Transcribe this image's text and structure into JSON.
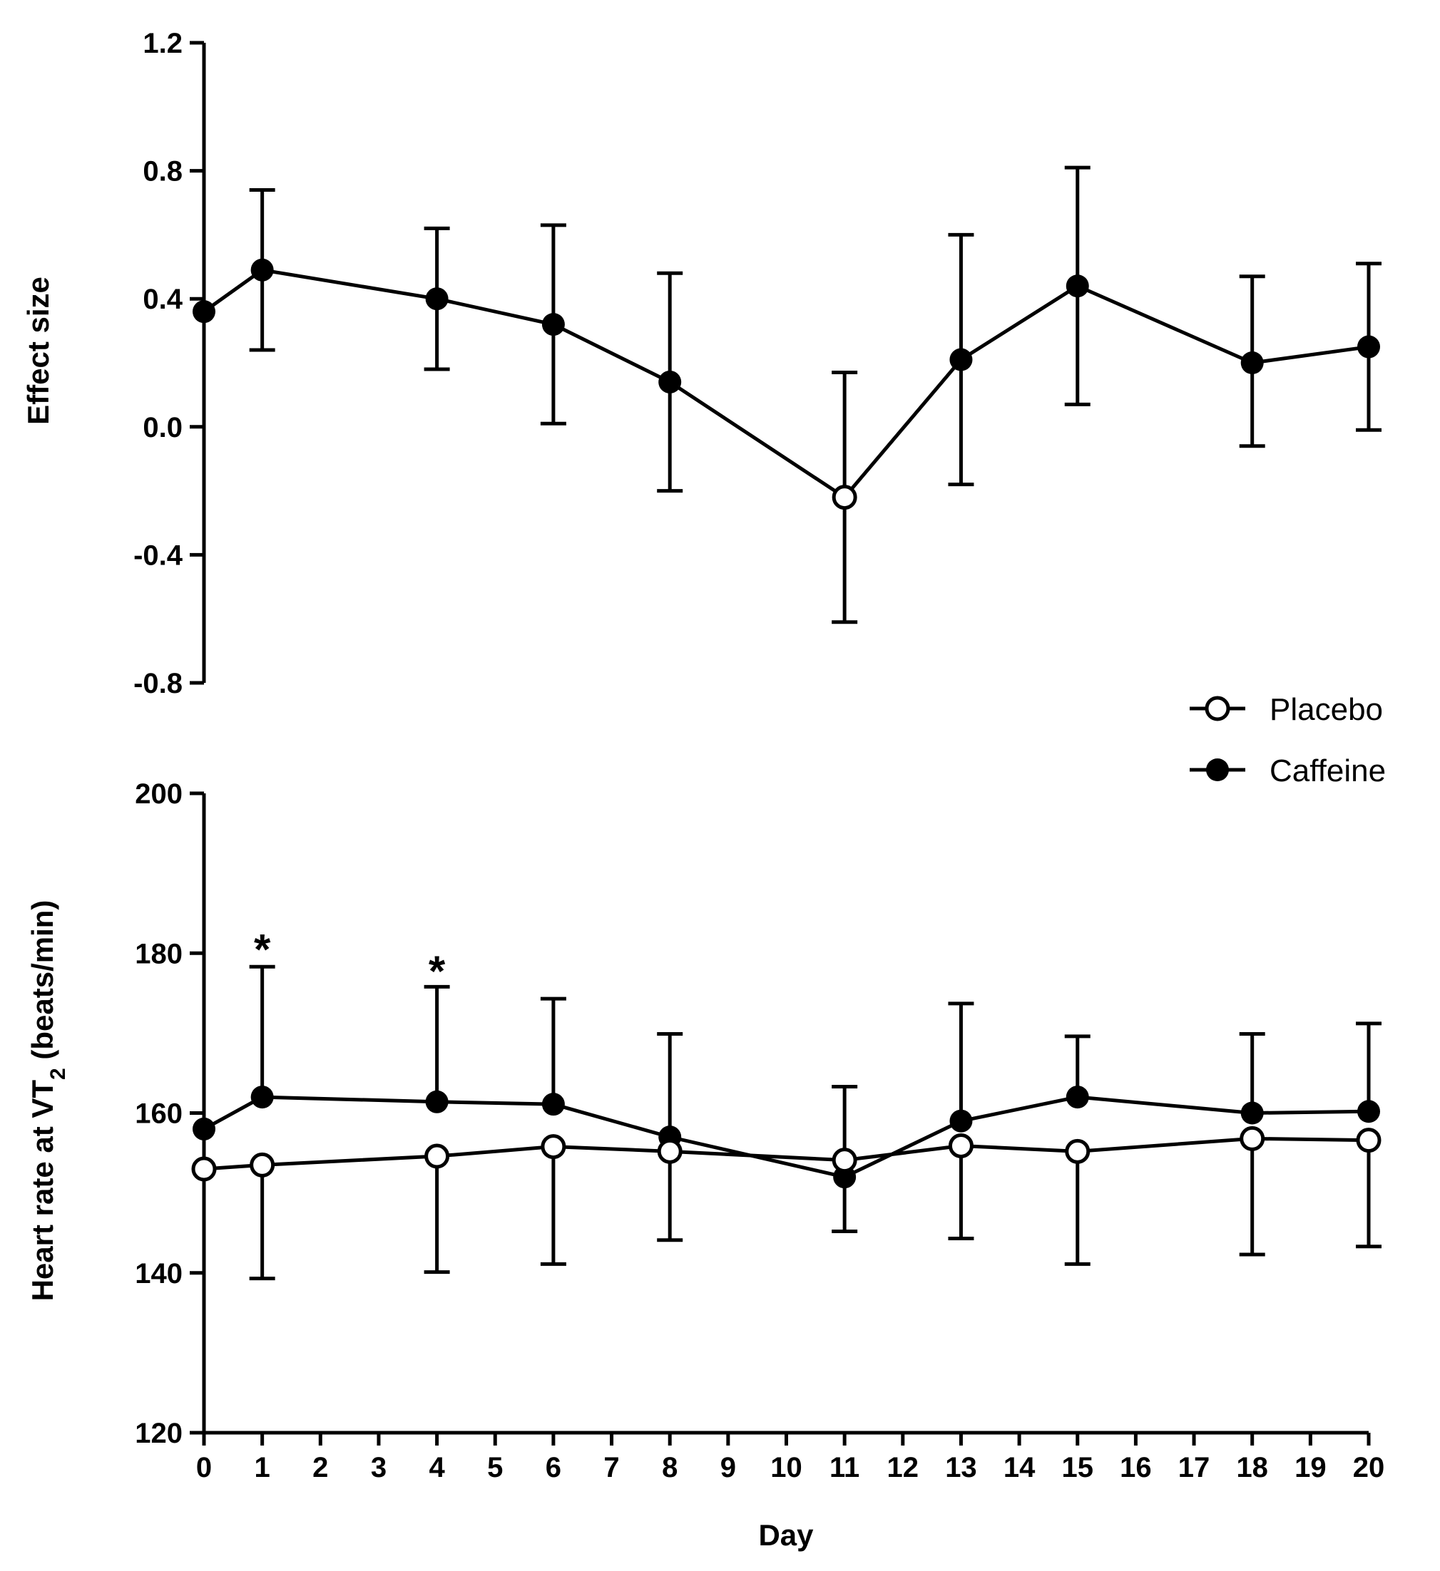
{
  "chart_data": [
    {
      "type": "line",
      "panel": "top",
      "title": "",
      "xlabel": "",
      "ylabel": "Effect size",
      "ylim": [
        -0.8,
        1.2
      ],
      "yticks": [
        "1.2",
        "0.8",
        "0.4",
        "0.0",
        "-0.4",
        "-0.8"
      ],
      "ytick_values": [
        1.2,
        0.8,
        0.4,
        0.0,
        -0.4,
        -0.8
      ],
      "xlim": [
        0,
        20
      ],
      "grid": false,
      "points": [
        {
          "x": 0,
          "y": 0.36,
          "lo": 0.36,
          "hi": 0.36,
          "marker": "filled"
        },
        {
          "x": 1,
          "y": 0.49,
          "lo": 0.24,
          "hi": 0.74,
          "marker": "filled"
        },
        {
          "x": 4,
          "y": 0.4,
          "lo": 0.18,
          "hi": 0.62,
          "marker": "filled"
        },
        {
          "x": 6,
          "y": 0.32,
          "lo": 0.01,
          "hi": 0.63,
          "marker": "filled"
        },
        {
          "x": 8,
          "y": 0.14,
          "lo": -0.2,
          "hi": 0.48,
          "marker": "filled"
        },
        {
          "x": 11,
          "y": -0.22,
          "lo": -0.61,
          "hi": 0.17,
          "marker": "open"
        },
        {
          "x": 13,
          "y": 0.21,
          "lo": -0.18,
          "hi": 0.6,
          "marker": "filled"
        },
        {
          "x": 15,
          "y": 0.44,
          "lo": 0.07,
          "hi": 0.81,
          "marker": "filled"
        },
        {
          "x": 18,
          "y": 0.2,
          "lo": -0.06,
          "hi": 0.47,
          "marker": "filled"
        },
        {
          "x": 20,
          "y": 0.25,
          "lo": -0.01,
          "hi": 0.51,
          "marker": "filled"
        }
      ]
    },
    {
      "type": "line",
      "panel": "bottom",
      "title": "",
      "xlabel": "Day",
      "ylabel_main": "Heart rate at VT",
      "ylabel_sub": "2",
      "ylabel_unit": " (beats/min)",
      "ylim": [
        120,
        200
      ],
      "yticks": [
        "200",
        "180",
        "160",
        "140",
        "120"
      ],
      "ytick_values": [
        200,
        180,
        160,
        140,
        120
      ],
      "xlim": [
        0,
        20
      ],
      "xticks": [
        "0",
        "1",
        "2",
        "3",
        "4",
        "5",
        "6",
        "7",
        "8",
        "9",
        "10",
        "11",
        "12",
        "13",
        "14",
        "15",
        "16",
        "17",
        "18",
        "19",
        "20"
      ],
      "grid": false,
      "legend": {
        "position": "top-right",
        "entries": [
          "Placebo",
          "Caffeine"
        ]
      },
      "annotations": [
        {
          "text": "*",
          "x": 1,
          "y": 180.6
        },
        {
          "text": "*",
          "x": 4,
          "y": 177.9
        }
      ],
      "series": [
        {
          "name": "Caffeine",
          "marker": "filled",
          "x": [
            0,
            1,
            4,
            6,
            8,
            11,
            13,
            15,
            18,
            20
          ],
          "y": [
            158.0,
            162.0,
            161.4,
            161.1,
            157.0,
            152.0,
            159.0,
            162.0,
            160.0,
            160.2
          ],
          "err_hi": [
            158.0,
            178.3,
            175.8,
            174.3,
            169.9,
            163.3,
            173.7,
            169.6,
            169.9,
            171.2
          ],
          "err_dir": "up"
        },
        {
          "name": "Placebo",
          "marker": "open",
          "x": [
            0,
            1,
            4,
            6,
            8,
            11,
            13,
            15,
            18,
            20
          ],
          "y": [
            153.0,
            153.5,
            154.6,
            155.8,
            155.2,
            154.1,
            155.9,
            155.2,
            156.8,
            156.6
          ],
          "err_lo": [
            153.0,
            139.3,
            140.1,
            141.1,
            144.1,
            145.2,
            144.3,
            141.1,
            142.3,
            143.3
          ],
          "err_dir": "down"
        }
      ]
    }
  ]
}
